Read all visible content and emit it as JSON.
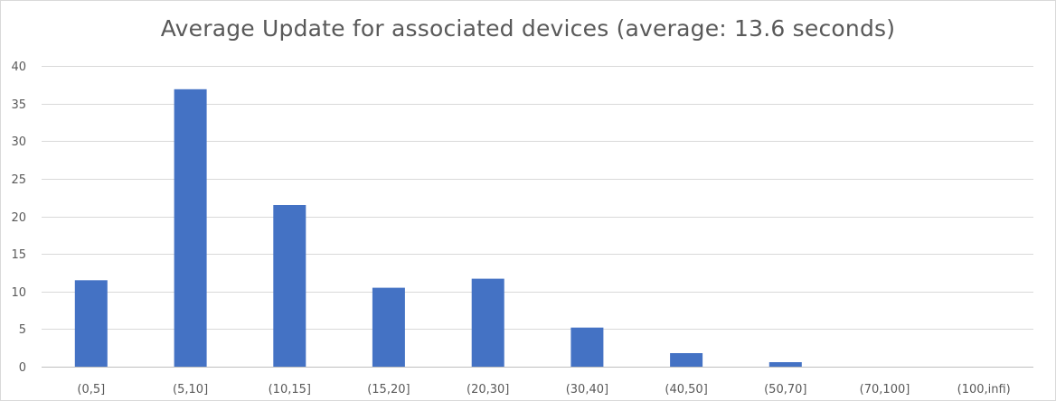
{
  "chart_data": {
    "type": "bar",
    "title": "Average Update for associated devices (average: 13.6 seconds)",
    "xlabel": "",
    "ylabel": "",
    "categories": [
      "(0,5]",
      "(5,10]",
      "(10,15]",
      "(15,20]",
      "(20,30]",
      "(30,40]",
      "(40,50]",
      "(50,70]",
      "(70,100]",
      "(100,infi)"
    ],
    "values": [
      11.5,
      36.9,
      21.5,
      10.5,
      11.7,
      5.2,
      1.8,
      0.6,
      0,
      0
    ],
    "ylim": [
      0,
      40
    ],
    "yticks": [
      "0",
      "5",
      "10",
      "15",
      "20",
      "25",
      "30",
      "35",
      "40"
    ],
    "grid": true,
    "legend": "none",
    "bar_color": "#4472c4",
    "grid_color": "#d9d9d9",
    "text_color": "#595959"
  }
}
